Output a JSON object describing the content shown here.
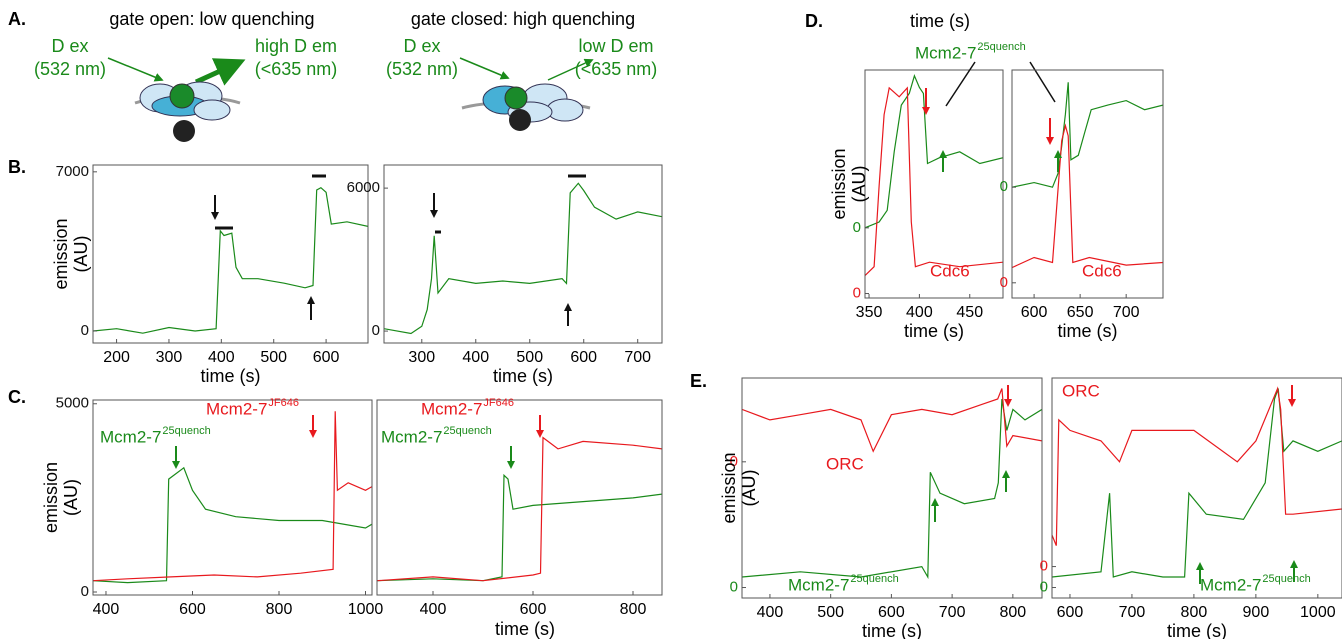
{
  "panel_a": {
    "letter": "A.",
    "left": {
      "title": "gate open: low quenching",
      "ex": "D ex",
      "ex_wl": "(532 nm)",
      "em": "high D em",
      "em_wl": "(<635 nm)"
    },
    "right": {
      "title": "gate closed: high quenching",
      "ex": "D ex",
      "ex_wl": "(532 nm)",
      "em": "low D em",
      "em_wl": "(<635 nm)"
    }
  },
  "chart_data": [
    {
      "type": "line",
      "panel": "B.",
      "ylabel": [
        "emission",
        "(AU)"
      ],
      "xlabel": "time (s)",
      "xlim": [
        155,
        680
      ],
      "ylim": [
        -530,
        7300
      ],
      "xticks": [
        200,
        300,
        400,
        500,
        600
      ],
      "yticks": [
        0,
        7000
      ],
      "series": [
        {
          "color": "#1a8a1a",
          "x": [
            155,
            200,
            250,
            300,
            350,
            390,
            398,
            405,
            420,
            428,
            440,
            470,
            520,
            560,
            575,
            582,
            590,
            600,
            610,
            640,
            680
          ],
          "values": [
            0,
            100,
            -100,
            150,
            0,
            100,
            4400,
            4200,
            4300,
            2800,
            2300,
            2300,
            2100,
            1900,
            2000,
            6200,
            6300,
            6100,
            4700,
            4800,
            4600
          ]
        }
      ]
    },
    {
      "type": "line",
      "xlabel": "time (s)",
      "xlim": [
        230,
        745
      ],
      "ylim": [
        -500,
        6970
      ],
      "xticks": [
        300,
        400,
        500,
        600,
        700
      ],
      "yticks": [
        0,
        6000
      ],
      "series": [
        {
          "color": "#1a8a1a",
          "x": [
            230,
            280,
            300,
            310,
            318,
            323,
            330,
            350,
            400,
            450,
            500,
            560,
            568,
            575,
            590,
            600,
            620,
            660,
            700,
            745
          ],
          "values": [
            100,
            -100,
            200,
            900,
            2200,
            4000,
            1600,
            2200,
            2000,
            2100,
            2000,
            2200,
            2000,
            5800,
            6200,
            5900,
            5200,
            4700,
            5000,
            4800
          ]
        }
      ]
    },
    {
      "type": "line",
      "panel": "C.",
      "ylabel": [
        "emission",
        "(AU)"
      ],
      "xlim": [
        370,
        1015
      ],
      "ylim": [
        -80,
        5100
      ],
      "xticks": [
        400,
        600,
        800,
        1000
      ],
      "yticks": [
        0,
        5000
      ],
      "annotations": [
        {
          "text": "Mcm2-7",
          "sup": "25quench",
          "color": "#1a8a1a"
        },
        {
          "text": "Mcm2-7",
          "sup": "JF646",
          "color": "#e8191e"
        }
      ],
      "series": [
        {
          "color": "#1a8a1a",
          "x": [
            370,
            450,
            540,
            545,
            580,
            600,
            630,
            700,
            800,
            900,
            1000,
            1015
          ],
          "values": [
            300,
            250,
            300,
            3000,
            3300,
            2700,
            2200,
            2000,
            1900,
            1900,
            1700,
            1800
          ]
        },
        {
          "color": "#e8191e",
          "x": [
            370,
            450,
            550,
            650,
            750,
            850,
            925,
            930,
            935,
            960,
            1000,
            1015
          ],
          "values": [
            300,
            350,
            400,
            450,
            400,
            500,
            600,
            4800,
            2700,
            2900,
            2700,
            2800
          ]
        }
      ]
    },
    {
      "type": "line",
      "xlabel": "time (s)",
      "xlim": [
        288,
        858
      ],
      "ylim": [
        -80,
        5100
      ],
      "xticks": [
        400,
        600,
        800
      ],
      "annotations": [
        {
          "text": "Mcm2-7",
          "sup": "25quench",
          "color": "#1a8a1a"
        },
        {
          "text": "Mcm2-7",
          "sup": "JF646",
          "color": "#e8191e"
        }
      ],
      "series": [
        {
          "color": "#1a8a1a",
          "x": [
            288,
            400,
            500,
            538,
            542,
            550,
            560,
            600,
            700,
            800,
            858
          ],
          "values": [
            300,
            350,
            300,
            400,
            3100,
            3000,
            2200,
            2300,
            2400,
            2500,
            2600
          ]
        },
        {
          "color": "#e8191e",
          "x": [
            288,
            400,
            500,
            600,
            615,
            620,
            650,
            700,
            800,
            858
          ],
          "values": [
            300,
            400,
            300,
            450,
            500,
            4100,
            3800,
            4000,
            3900,
            3800
          ]
        }
      ]
    },
    {
      "type": "line",
      "panel": "D.",
      "header": "time (s)",
      "ylabel": [
        "emission",
        "(AU)"
      ],
      "xlabel": "time (s)",
      "xlim": [
        346,
        483
      ],
      "ylim": [
        -1200,
        2700
      ],
      "y2lim": [
        -50,
        2500
      ],
      "xticks": [
        350,
        400,
        450
      ],
      "yticks": [
        0
      ],
      "y2ticks": [
        0
      ],
      "annotations": [
        {
          "text": "Mcm2-7",
          "sup": "25quench",
          "color": "#1a8a1a"
        },
        {
          "text": "Cdc6",
          "color": "#e8191e"
        }
      ],
      "series": [
        {
          "color": "#1a8a1a",
          "x": [
            346,
            360,
            368,
            375,
            382,
            390,
            395,
            400,
            404,
            408,
            420,
            440,
            460,
            483
          ],
          "values": [
            0,
            100,
            300,
            1300,
            2100,
            2300,
            2600,
            2400,
            2300,
            1100,
            1200,
            1300,
            1100,
            1200
          ]
        },
        {
          "color": "#e8191e",
          "axis": "y2",
          "x": [
            346,
            355,
            360,
            365,
            370,
            380,
            388,
            392,
            396,
            410,
            440,
            483
          ],
          "values": [
            200,
            300,
            1200,
            2000,
            2300,
            2200,
            2300,
            800,
            300,
            350,
            300,
            350
          ]
        }
      ]
    },
    {
      "type": "line",
      "xlabel": "time (s)",
      "xlim": [
        576,
        740
      ],
      "ylim": [
        -2430,
        2570
      ],
      "y2lim": [
        -300,
        4200
      ],
      "xticks": [
        600,
        650,
        700
      ],
      "yticks": [
        0
      ],
      "y2ticks": [
        0
      ],
      "annotations": [
        {
          "text": "Cdc6",
          "color": "#e8191e"
        }
      ],
      "series": [
        {
          "color": "#1a8a1a",
          "x": [
            576,
            600,
            620,
            626,
            630,
            634,
            637,
            640,
            648,
            655,
            662,
            680,
            700,
            720,
            740
          ],
          "values": [
            0,
            100,
            0,
            300,
            900,
            1600,
            2300,
            600,
            700,
            1200,
            1700,
            1800,
            1900,
            1700,
            1800
          ]
        },
        {
          "color": "#e8191e",
          "axis": "y2",
          "x": [
            576,
            600,
            620,
            625,
            630,
            634,
            637,
            642,
            660,
            700,
            740
          ],
          "values": [
            300,
            500,
            400,
            1600,
            2800,
            3100,
            2900,
            400,
            500,
            350,
            400
          ]
        }
      ]
    },
    {
      "type": "line",
      "panel": "E.",
      "ylabel": [
        "emission",
        "(AU)"
      ],
      "xlabel": "time (s)",
      "xlim": [
        354,
        848
      ],
      "ylim": [
        -100,
        2000
      ],
      "y2lim": [
        -1300,
        800
      ],
      "xticks": [
        400,
        500,
        600,
        700,
        800
      ],
      "yticks": [
        0
      ],
      "y2ticks": [
        0
      ],
      "annotations": [
        {
          "text": "ORC",
          "color": "#e8191e"
        },
        {
          "text": "Mcm2-7",
          "sup": "25quench",
          "color": "#1a8a1a"
        }
      ],
      "series": [
        {
          "color": "#1a8a1a",
          "x": [
            354,
            450,
            550,
            650,
            660,
            664,
            680,
            720,
            770,
            776,
            782,
            790,
            800,
            820,
            848
          ],
          "values": [
            100,
            150,
            100,
            200,
            100,
            1100,
            900,
            800,
            850,
            1000,
            1800,
            1500,
            1700,
            1600,
            1700
          ]
        },
        {
          "color": "#e8191e",
          "axis": "y2",
          "x": [
            354,
            400,
            450,
            500,
            550,
            570,
            600,
            650,
            700,
            750,
            775,
            782,
            790,
            800,
            848
          ],
          "values": [
            500,
            400,
            450,
            500,
            400,
            100,
            450,
            500,
            450,
            550,
            600,
            700,
            150,
            250,
            200
          ]
        }
      ]
    },
    {
      "type": "line",
      "xlabel": "time (s)",
      "xlim": [
        571,
        1039
      ],
      "ylim": [
        -100,
        2000
      ],
      "y2lim": [
        -300,
        1800
      ],
      "xticks": [
        600,
        700,
        800,
        900,
        1000
      ],
      "yticks": [
        0
      ],
      "y2ticks": [
        0
      ],
      "annotations": [
        {
          "text": "ORC",
          "color": "#e8191e"
        },
        {
          "text": "Mcm2-7",
          "sup": "25quench",
          "color": "#1a8a1a"
        }
      ],
      "series": [
        {
          "color": "#1a8a1a",
          "x": [
            571,
            650,
            664,
            670,
            700,
            750,
            785,
            792,
            820,
            880,
            915,
            930,
            936,
            945,
            960,
            1000,
            1039
          ],
          "values": [
            100,
            150,
            900,
            100,
            150,
            100,
            100,
            900,
            700,
            650,
            1000,
            1800,
            1900,
            1300,
            1400,
            1300,
            1400
          ]
        },
        {
          "color": "#e8191e",
          "axis": "y2",
          "x": [
            571,
            578,
            582,
            600,
            650,
            680,
            700,
            800,
            870,
            900,
            935,
            940,
            948,
            960,
            1039
          ],
          "values": [
            300,
            200,
            1400,
            1300,
            1200,
            1000,
            1300,
            1300,
            1000,
            1200,
            1700,
            1500,
            500,
            500,
            550
          ]
        }
      ]
    }
  ]
}
